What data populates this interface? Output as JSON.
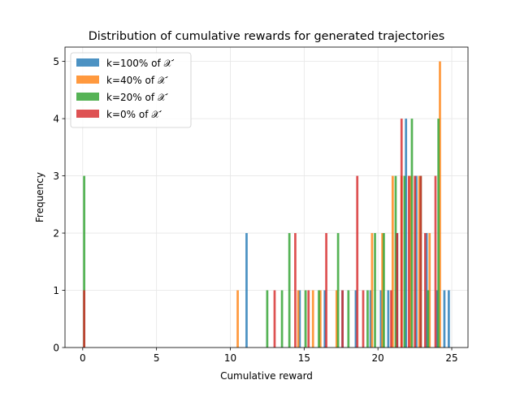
{
  "chart_data": {
    "type": "histogram",
    "title": "Distribution of cumulative rewards for generated trajectories",
    "xlabel": "Cumulative reward",
    "ylabel": "Frequency",
    "xlim": [
      -1.2,
      26.1
    ],
    "ylim": [
      0,
      5.25
    ],
    "x_ticks": [
      0,
      5,
      10,
      15,
      20,
      25
    ],
    "y_ticks": [
      0,
      1,
      2,
      3,
      4,
      5
    ],
    "grid": true,
    "legend_position": "upper-left",
    "series": [
      {
        "name": "k=100% of 𝒳′",
        "color": "#1f77b4",
        "bins": [
          {
            "x": 11.1,
            "y": 2
          },
          {
            "x": 14.7,
            "y": 1
          },
          {
            "x": 16.4,
            "y": 1
          },
          {
            "x": 17.6,
            "y": 1
          },
          {
            "x": 18.5,
            "y": 1
          },
          {
            "x": 19.5,
            "y": 1
          },
          {
            "x": 20.2,
            "y": 1
          },
          {
            "x": 20.7,
            "y": 1
          },
          {
            "x": 21.3,
            "y": 2
          },
          {
            "x": 21.9,
            "y": 4
          },
          {
            "x": 22.6,
            "y": 3
          },
          {
            "x": 23.3,
            "y": 2
          },
          {
            "x": 24.0,
            "y": 1
          },
          {
            "x": 24.5,
            "y": 1
          },
          {
            "x": 24.8,
            "y": 1
          }
        ]
      },
      {
        "name": "k=40% of 𝒳′",
        "color": "#ff7f0e",
        "bins": [
          {
            "x": 10.5,
            "y": 1
          },
          {
            "x": 14.6,
            "y": 1
          },
          {
            "x": 15.6,
            "y": 1
          },
          {
            "x": 16.1,
            "y": 1
          },
          {
            "x": 17.2,
            "y": 1
          },
          {
            "x": 19.6,
            "y": 2
          },
          {
            "x": 20.3,
            "y": 2
          },
          {
            "x": 21.0,
            "y": 3
          },
          {
            "x": 21.6,
            "y": 3
          },
          {
            "x": 22.2,
            "y": 3
          },
          {
            "x": 22.8,
            "y": 3
          },
          {
            "x": 23.5,
            "y": 2
          },
          {
            "x": 24.2,
            "y": 5
          }
        ]
      },
      {
        "name": "k=20% of 𝒳′",
        "color": "#2ca02c",
        "bins": [
          {
            "x": 0.1,
            "y": 3
          },
          {
            "x": 12.5,
            "y": 1
          },
          {
            "x": 13.5,
            "y": 1
          },
          {
            "x": 14.0,
            "y": 2
          },
          {
            "x": 15.1,
            "y": 1
          },
          {
            "x": 16.0,
            "y": 1
          },
          {
            "x": 17.3,
            "y": 2
          },
          {
            "x": 18.0,
            "y": 1
          },
          {
            "x": 19.3,
            "y": 1
          },
          {
            "x": 19.8,
            "y": 2
          },
          {
            "x": 20.4,
            "y": 2
          },
          {
            "x": 21.2,
            "y": 3
          },
          {
            "x": 21.8,
            "y": 3
          },
          {
            "x": 22.3,
            "y": 4
          },
          {
            "x": 22.9,
            "y": 3
          },
          {
            "x": 23.4,
            "y": 1
          },
          {
            "x": 24.1,
            "y": 4
          }
        ]
      },
      {
        "name": "k=0% of 𝒳′",
        "color": "#d62728",
        "bins": [
          {
            "x": 0.1,
            "y": 1
          },
          {
            "x": 13.0,
            "y": 1
          },
          {
            "x": 14.4,
            "y": 2
          },
          {
            "x": 15.3,
            "y": 1
          },
          {
            "x": 16.5,
            "y": 2
          },
          {
            "x": 17.6,
            "y": 1
          },
          {
            "x": 18.6,
            "y": 3
          },
          {
            "x": 19.0,
            "y": 1
          },
          {
            "x": 20.9,
            "y": 1
          },
          {
            "x": 21.3,
            "y": 2
          },
          {
            "x": 21.6,
            "y": 4
          },
          {
            "x": 22.1,
            "y": 3
          },
          {
            "x": 22.5,
            "y": 3
          },
          {
            "x": 22.9,
            "y": 3
          },
          {
            "x": 23.2,
            "y": 2
          },
          {
            "x": 23.9,
            "y": 3
          }
        ]
      }
    ]
  }
}
